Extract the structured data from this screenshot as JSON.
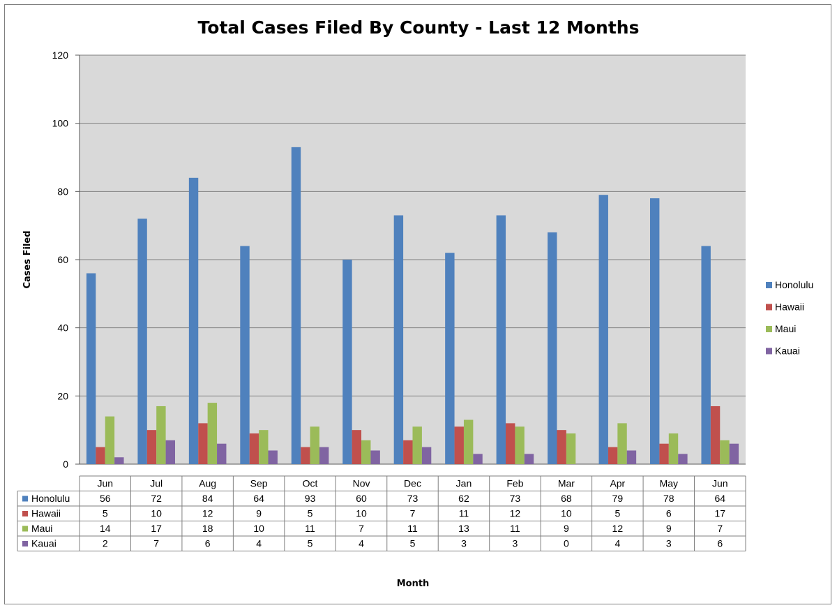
{
  "chart_data": {
    "type": "bar",
    "title": "Total Cases Filed By County - Last 12 Months",
    "xlabel": "Month",
    "ylabel": "Cases Filed",
    "ylim": [
      0,
      120
    ],
    "yticks": [
      0,
      20,
      40,
      60,
      80,
      100,
      120
    ],
    "grid": true,
    "legend": "right",
    "categories": [
      "Jun",
      "Jul",
      "Aug",
      "Sep",
      "Oct",
      "Nov",
      "Dec",
      "Jan",
      "Feb",
      "Mar",
      "Apr",
      "May",
      "Jun"
    ],
    "series": [
      {
        "name": "Honolulu",
        "color": "#4f81bd",
        "values": [
          56,
          72,
          84,
          64,
          93,
          60,
          73,
          62,
          73,
          68,
          79,
          78,
          64
        ]
      },
      {
        "name": "Hawaii",
        "color": "#c0504d",
        "values": [
          5,
          10,
          12,
          9,
          5,
          10,
          7,
          11,
          12,
          10,
          5,
          6,
          17
        ]
      },
      {
        "name": "Maui",
        "color": "#9bbb59",
        "values": [
          14,
          17,
          18,
          10,
          11,
          7,
          11,
          13,
          11,
          9,
          12,
          9,
          7
        ]
      },
      {
        "name": "Kauai",
        "color": "#8064a2",
        "values": [
          2,
          7,
          6,
          4,
          5,
          4,
          5,
          3,
          3,
          0,
          4,
          3,
          6
        ]
      }
    ],
    "data_table": true
  }
}
